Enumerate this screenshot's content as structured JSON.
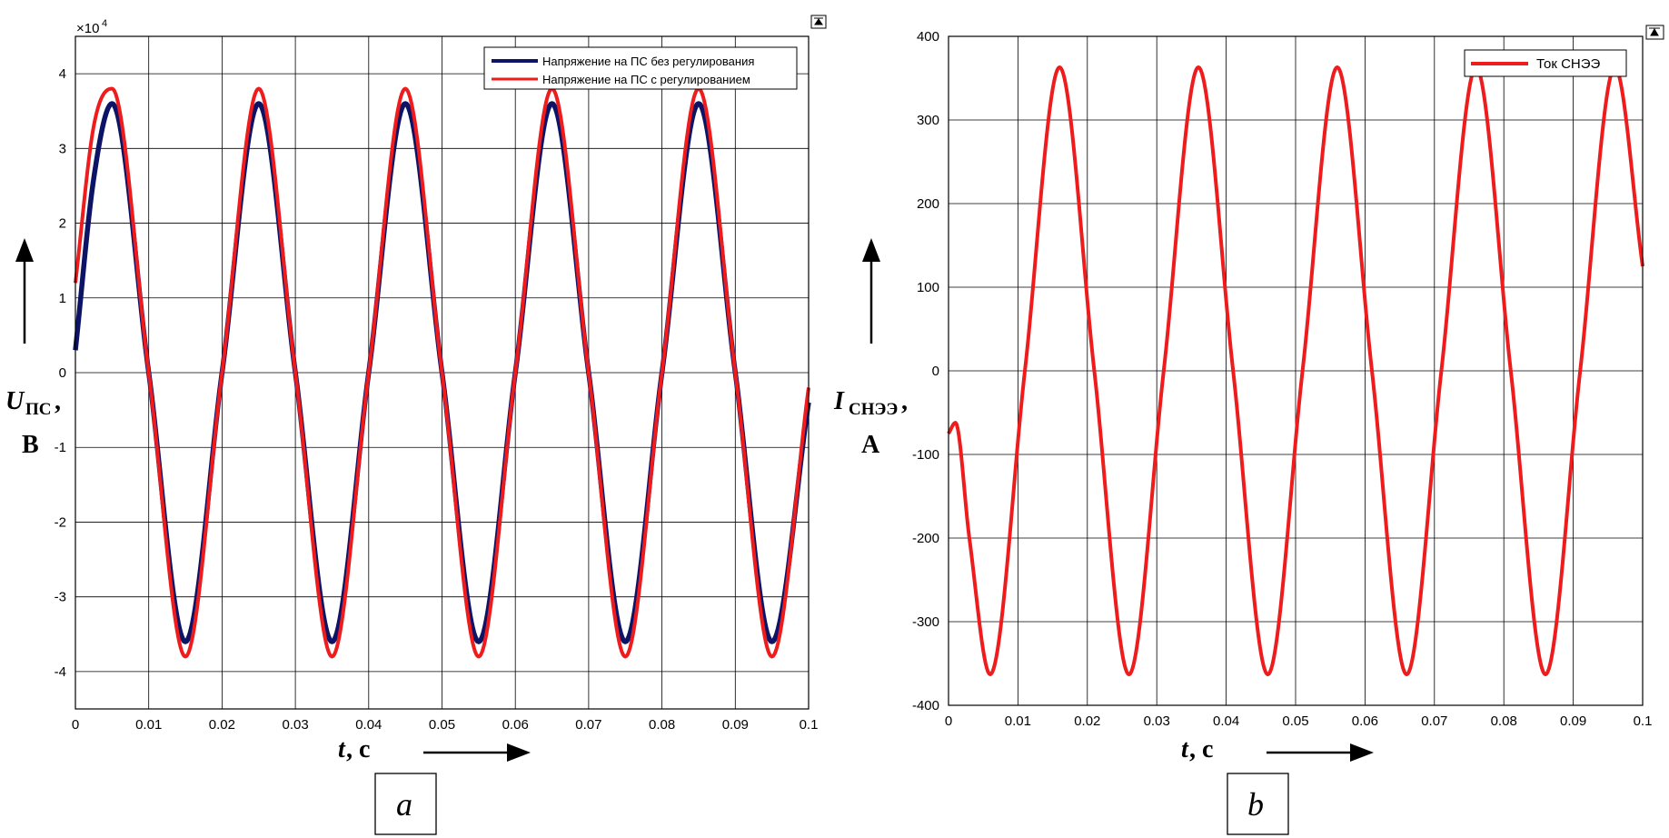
{
  "colors": {
    "blue": "#0d1466",
    "red": "#ee1c1c",
    "grid": "#000000"
  },
  "panels": [
    {
      "label": "a",
      "ylabel_main": "U",
      "ylabel_sub": "ПС",
      "ylabel_comma": ",",
      "ylabel_unit": "В",
      "xlabel_var": "t",
      "xlabel_unit": ", с"
    },
    {
      "label": "b",
      "ylabel_main": "I",
      "ylabel_sub": "СНЭЭ",
      "ylabel_comma": ",",
      "ylabel_unit": "А",
      "xlabel_var": "t",
      "xlabel_unit": ", с"
    }
  ],
  "chart_data": [
    {
      "type": "line",
      "exponent_label": "×10^4",
      "exponent_base": "×10",
      "exponent_power": "4",
      "xlim": [
        0,
        0.1
      ],
      "ylim": [
        -4.5,
        4.5
      ],
      "x_ticks": [
        "0",
        "0.01",
        "0.02",
        "0.03",
        "0.04",
        "0.05",
        "0.06",
        "0.07",
        "0.08",
        "0.09",
        "0.1"
      ],
      "y_ticks": [
        "4",
        "3",
        "2",
        "1",
        "0",
        "-1",
        "-2",
        "-3",
        "-4"
      ],
      "grid": true,
      "legend_position": "top-right",
      "series": [
        {
          "name": "Напряжение на ПС без регулирования",
          "color": "#0d1466",
          "x": [
            0,
            0.0025,
            0.005,
            0.01,
            0.015,
            0.02,
            0.025,
            0.03,
            0.035,
            0.04,
            0.045,
            0.05,
            0.055,
            0.06,
            0.065,
            0.07,
            0.075,
            0.08,
            0.085,
            0.09,
            0.095,
            0.1
          ],
          "y": [
            0.3,
            2.6,
            3.6,
            0,
            -3.6,
            0,
            3.6,
            0,
            -3.6,
            0,
            3.6,
            0,
            -3.6,
            0,
            3.6,
            0,
            -3.6,
            0,
            3.6,
            0,
            -3.6,
            -0.4
          ]
        },
        {
          "name": "Напряжение на ПС с регулированием",
          "color": "#ee1c1c",
          "x": [
            0,
            0.0025,
            0.005,
            0.01,
            0.015,
            0.02,
            0.025,
            0.03,
            0.035,
            0.04,
            0.045,
            0.05,
            0.055,
            0.06,
            0.065,
            0.07,
            0.075,
            0.08,
            0.085,
            0.09,
            0.095,
            0.1
          ],
          "y": [
            1.2,
            3.3,
            3.8,
            0,
            -3.8,
            0,
            3.8,
            0,
            -3.8,
            0,
            3.8,
            0,
            -3.8,
            0,
            3.8,
            0,
            -3.8,
            0,
            3.8,
            0,
            -3.8,
            -0.2
          ]
        }
      ]
    },
    {
      "type": "line",
      "xlim": [
        0,
        0.1
      ],
      "ylim": [
        -400,
        400
      ],
      "x_ticks": [
        "0",
        "0.01",
        "0.02",
        "0.03",
        "0.04",
        "0.05",
        "0.06",
        "0.07",
        "0.08",
        "0.09",
        "0.1"
      ],
      "y_ticks": [
        "400",
        "300",
        "200",
        "100",
        "0",
        "-100",
        "-200",
        "-300",
        "-400"
      ],
      "grid": true,
      "legend_position": "top-right",
      "series": [
        {
          "name": "Ток СНЭЭ",
          "color": "#ee1c1c",
          "x": [
            0,
            0.001,
            0.003,
            0.006,
            0.011,
            0.016,
            0.021,
            0.026,
            0.031,
            0.036,
            0.041,
            0.046,
            0.051,
            0.056,
            0.061,
            0.066,
            0.071,
            0.076,
            0.081,
            0.086,
            0.091,
            0.096,
            0.1
          ],
          "y": [
            -75,
            -62,
            -200,
            -363,
            0,
            363,
            0,
            -363,
            0,
            363,
            0,
            -363,
            0,
            363,
            0,
            -363,
            0,
            363,
            0,
            -363,
            0,
            363,
            125
          ]
        }
      ]
    }
  ]
}
